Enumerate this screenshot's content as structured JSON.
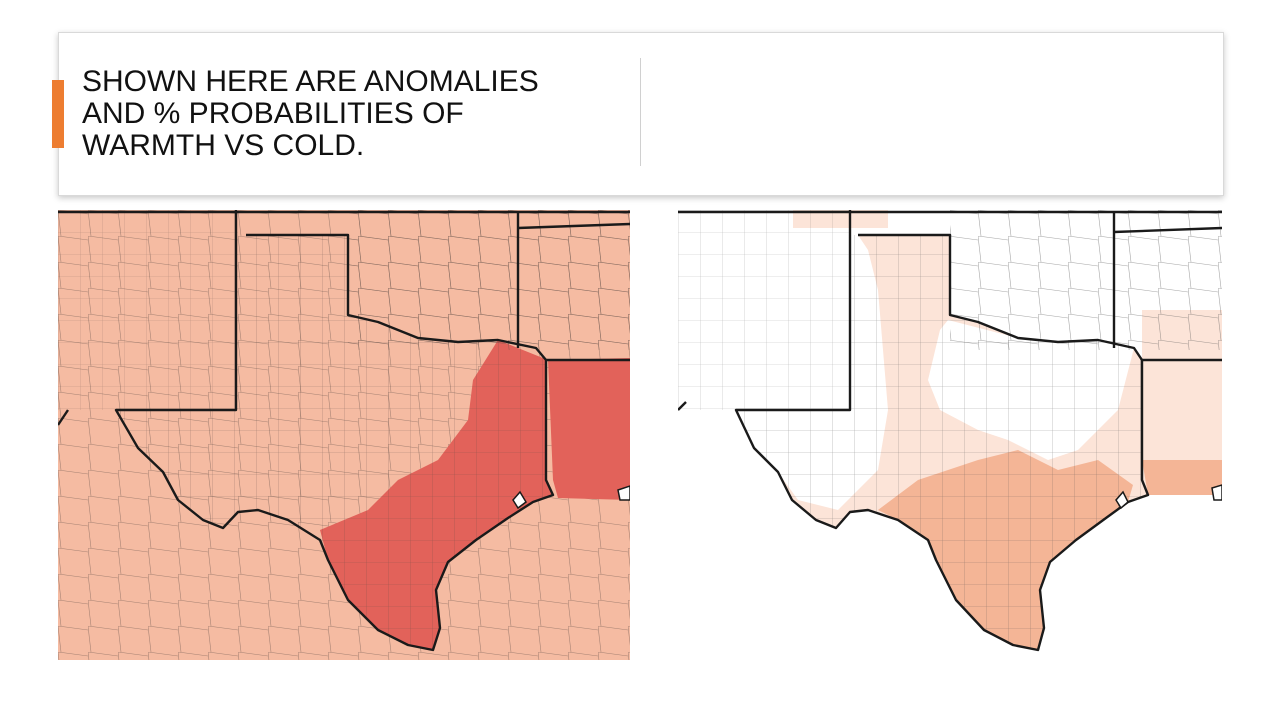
{
  "slide": {
    "title": "SHOWN HERE ARE ANOMALIES\nAND % PROBABILITIES OF\nWARMTH VS COLD."
  },
  "colors": {
    "accent": "#ED7D31",
    "anomaly_light": "#F5BBA2",
    "anomaly_strong": "#E2625A",
    "prob_none": "#FFFFFF",
    "prob_low": "#FCE4D8",
    "prob_mid": "#F4B596",
    "boundary": "#1a1a1a",
    "county_line": "#555555"
  },
  "maps": [
    {
      "name": "anomaly-map",
      "kind": "temperature anomalies"
    },
    {
      "name": "probability-map",
      "kind": "% probability of warmth vs cold"
    }
  ]
}
